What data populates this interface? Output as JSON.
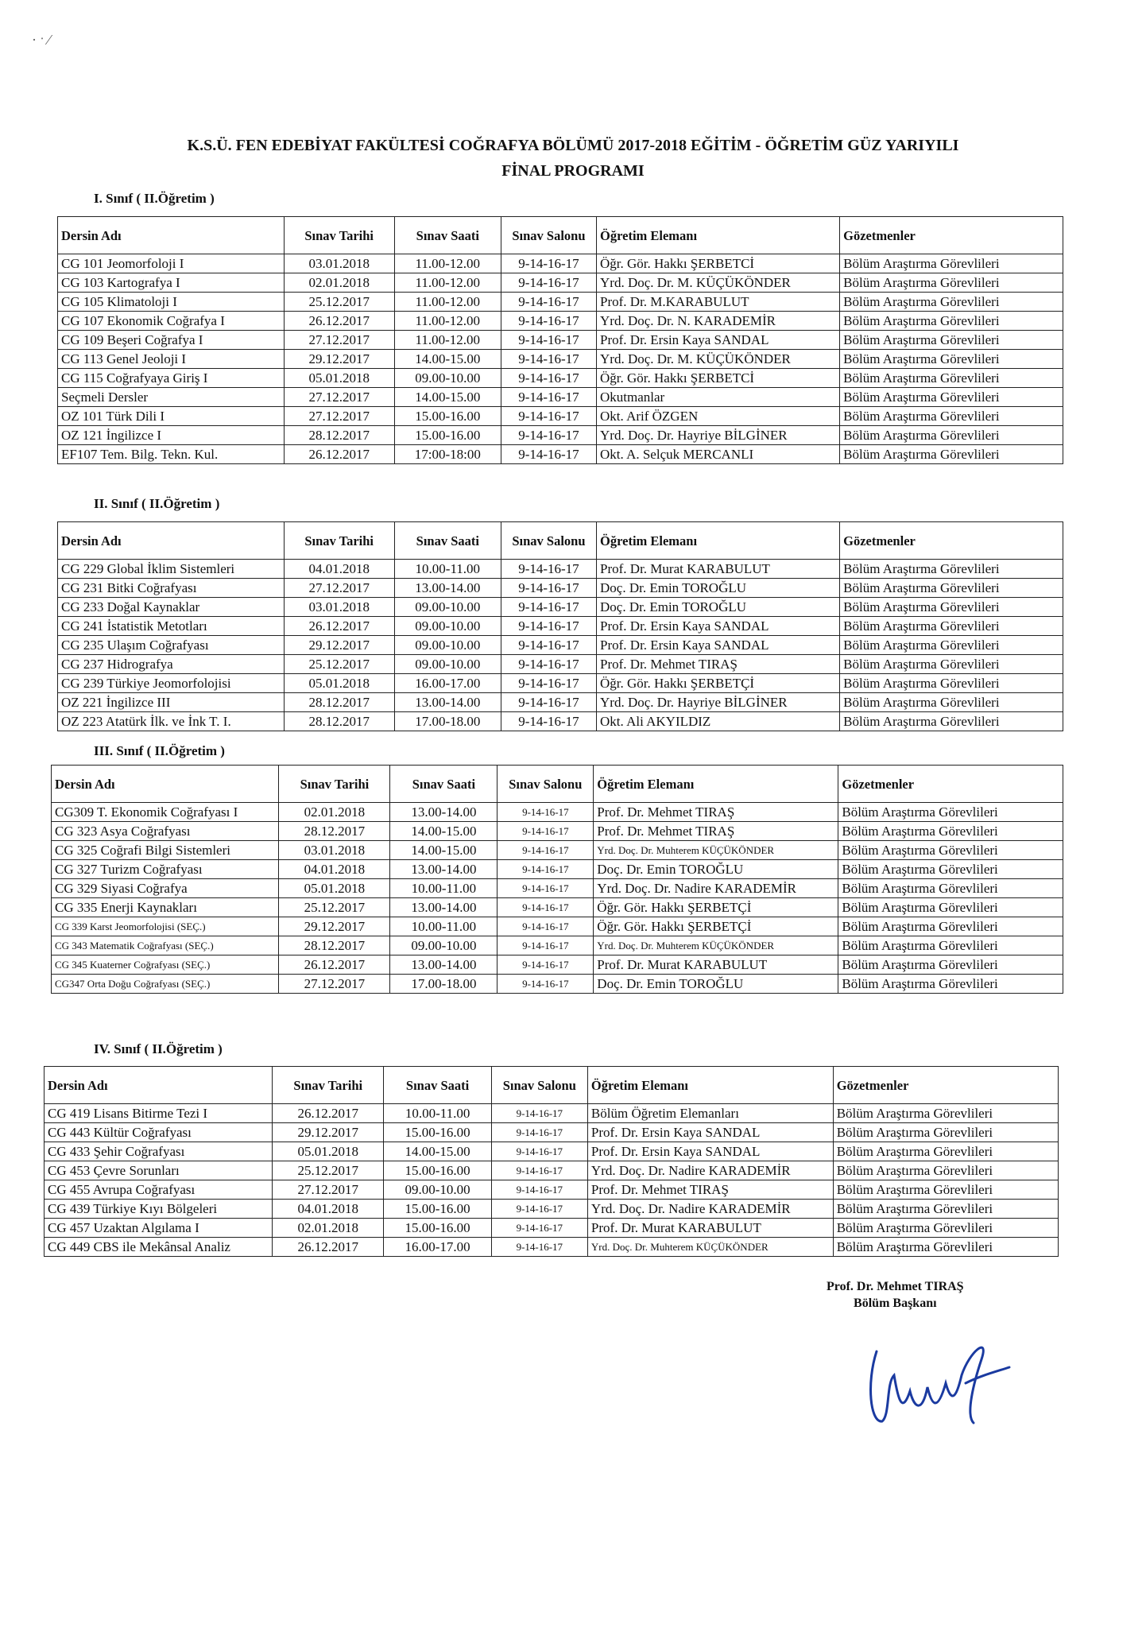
{
  "title_line1": "K.S.Ü. FEN EDEBİYAT FAKÜLTESİ COĞRAFYA BÖLÜMÜ 2017-2018 EĞİTİM - ÖĞRETİM GÜZ YARIYILI",
  "title_line2": "FİNAL PROGRAMI",
  "headers": [
    "Dersin Adı",
    "Sınav Tarihi",
    "Sınav Saati",
    "Sınav Salonu",
    "Öğretim Elemanı",
    "Gözetmenler"
  ],
  "sections": [
    {
      "label": "I. Sınıf ( II.Öğretim )",
      "rows": [
        [
          "CG 101 Jeomorfoloji I",
          "03.01.2018",
          "11.00-12.00",
          "9-14-16-17",
          "Öğr. Gör. Hakkı ŞERBETCİ",
          "Bölüm Araştırma Görevlileri"
        ],
        [
          "CG 103 Kartografya I",
          "02.01.2018",
          "11.00-12.00",
          "9-14-16-17",
          "Yrd. Doç. Dr. M. KÜÇÜKÖNDER",
          "Bölüm Araştırma Görevlileri"
        ],
        [
          "CG 105 Klimatoloji I",
          "25.12.2017",
          "11.00-12.00",
          "9-14-16-17",
          "Prof. Dr. M.KARABULUT",
          "Bölüm Araştırma Görevlileri"
        ],
        [
          "CG 107 Ekonomik Coğrafya I",
          "26.12.2017",
          "11.00-12.00",
          "9-14-16-17",
          "Yrd. Doç. Dr. N. KARADEMİR",
          "Bölüm Araştırma Görevlileri"
        ],
        [
          "CG 109 Beşeri Coğrafya I",
          "27.12.2017",
          "11.00-12.00",
          "9-14-16-17",
          "Prof. Dr. Ersin Kaya SANDAL",
          "Bölüm Araştırma Görevlileri"
        ],
        [
          "CG 113 Genel Jeoloji I",
          "29.12.2017",
          "14.00-15.00",
          "9-14-16-17",
          "Yrd. Doç. Dr. M. KÜÇÜKÖNDER",
          "Bölüm Araştırma Görevlileri"
        ],
        [
          "CG 115 Coğrafyaya Giriş I",
          "05.01.2018",
          "09.00-10.00",
          "9-14-16-17",
          "Öğr. Gör. Hakkı ŞERBETCİ",
          "Bölüm Araştırma Görevlileri"
        ],
        [
          "Seçmeli Dersler",
          "27.12.2017",
          "14.00-15.00",
          "9-14-16-17",
          "Okutmanlar",
          "Bölüm Araştırma Görevlileri"
        ],
        [
          "OZ 101 Türk Dili I",
          "27.12.2017",
          "15.00-16.00",
          "9-14-16-17",
          "Okt.  Arif ÖZGEN",
          "Bölüm Araştırma Görevlileri"
        ],
        [
          "OZ 121 İngilizce I",
          "28.12.2017",
          "15.00-16.00",
          "9-14-16-17",
          "Yrd. Doç. Dr. Hayriye BİLGİNER",
          "Bölüm Araştırma Görevlileri"
        ],
        [
          "EF107 Tem. Bilg. Tekn. Kul.",
          "26.12.2017",
          "17:00-18:00",
          "9-14-16-17",
          "Okt. A. Selçuk MERCANLI",
          "Bölüm Araştırma Görevlileri"
        ]
      ]
    },
    {
      "label": "II. Sınıf ( II.Öğretim )",
      "rows": [
        [
          "CG 229 Global İklim Sistemleri",
          "04.01.2018",
          "10.00-11.00",
          "9-14-16-17",
          "Prof. Dr. Murat KARABULUT",
          "Bölüm Araştırma Görevlileri"
        ],
        [
          "CG 231 Bitki Coğrafyası",
          "27.12.2017",
          "13.00-14.00",
          "9-14-16-17",
          "Doç. Dr. Emin TOROĞLU",
          "Bölüm Araştırma Görevlileri"
        ],
        [
          "CG 233 Doğal Kaynaklar",
          "03.01.2018",
          "09.00-10.00",
          "9-14-16-17",
          "Doç. Dr. Emin TOROĞLU",
          "Bölüm Araştırma Görevlileri"
        ],
        [
          "CG 241 İstatistik Metotları",
          "26.12.2017",
          "09.00-10.00",
          "9-14-16-17",
          "Prof. Dr. Ersin Kaya SANDAL",
          "Bölüm Araştırma Görevlileri"
        ],
        [
          "CG 235 Ulaşım Coğrafyası",
          "29.12.2017",
          "09.00-10.00",
          "9-14-16-17",
          "Prof. Dr. Ersin Kaya SANDAL",
          "Bölüm Araştırma Görevlileri"
        ],
        [
          "CG 237 Hidrografya",
          "25.12.2017",
          "09.00-10.00",
          "9-14-16-17",
          "Prof. Dr. Mehmet TIRAŞ",
          "Bölüm Araştırma Görevlileri"
        ],
        [
          "CG 239 Türkiye Jeomorfolojisi",
          "05.01.2018",
          "16.00-17.00",
          "9-14-16-17",
          "Öğr. Gör. Hakkı ŞERBETÇİ",
          "Bölüm Araştırma Görevlileri"
        ],
        [
          "OZ 221 İngilizce III",
          "28.12.2017",
          "13.00-14.00",
          "9-14-16-17",
          "Yrd. Doç. Dr. Hayriye BİLGİNER",
          "Bölüm Araştırma Görevlileri"
        ],
        [
          "OZ 223 Atatürk İlk. ve İnk T. I.",
          "28.12.2017",
          "17.00-18.00",
          "9-14-16-17",
          "Okt. Ali AKYILDIZ",
          "Bölüm Araştırma Görevlileri"
        ]
      ]
    },
    {
      "label": "III. Sınıf ( II.Öğretim )",
      "rows": [
        [
          "CG309 T. Ekonomik Coğrafyası I",
          "02.01.2018",
          "13.00-14.00",
          "9-14-16-17",
          "Prof. Dr. Mehmet TIRAŞ",
          "Bölüm Araştırma Görevlileri"
        ],
        [
          "CG 323 Asya Coğrafyası",
          "28.12.2017",
          "14.00-15.00",
          "9-14-16-17",
          "Prof. Dr. Mehmet TIRAŞ",
          "Bölüm Araştırma Görevlileri"
        ],
        [
          "CG 325 Coğrafi Bilgi Sistemleri",
          "03.01.2018",
          "14.00-15.00",
          "9-14-16-17",
          "Yrd. Doç. Dr. Muhterem KÜÇÜKÖNDER",
          "Bölüm Araştırma Görevlileri"
        ],
        [
          "CG 327 Turizm Coğrafyası",
          "04.01.2018",
          "13.00-14.00",
          "9-14-16-17",
          "Doç. Dr. Emin TOROĞLU",
          "Bölüm Araştırma Görevlileri"
        ],
        [
          "CG 329 Siyasi Coğrafya",
          "05.01.2018",
          "10.00-11.00",
          "9-14-16-17",
          "Yrd. Doç. Dr. Nadire KARADEMİR",
          "Bölüm Araştırma Görevlileri"
        ],
        [
          "CG 335 Enerji Kaynakları",
          "25.12.2017",
          "13.00-14.00",
          "9-14-16-17",
          "Öğr. Gör. Hakkı ŞERBETÇİ",
          "Bölüm Araştırma Görevlileri"
        ],
        [
          "CG 339 Karst Jeomorfolojisi (SEÇ.)",
          "29.12.2017",
          "10.00-11.00",
          "9-14-16-17",
          "Öğr. Gör. Hakkı ŞERBETÇİ",
          "Bölüm Araştırma Görevlileri"
        ],
        [
          "CG 343 Matematik Coğrafyası (SEÇ.)",
          "28.12.2017",
          "09.00-10.00",
          "9-14-16-17",
          "Yrd. Doç. Dr. Muhterem KÜÇÜKÖNDER",
          "Bölüm Araştırma Görevlileri"
        ],
        [
          "CG 345 Kuaterner Coğrafyası (SEÇ.)",
          "26.12.2017",
          "13.00-14.00",
          "9-14-16-17",
          "Prof. Dr. Murat KARABULUT",
          "Bölüm Araştırma Görevlileri"
        ],
        [
          "CG347 Orta Doğu Coğrafyası (SEÇ.)",
          "27.12.2017",
          "17.00-18.00",
          "9-14-16-17",
          "Doç. Dr. Emin TOROĞLU",
          "Bölüm Araştırma Görevlileri"
        ]
      ]
    },
    {
      "label": "IV. Sınıf ( II.Öğretim )",
      "rows": [
        [
          "CG 419 Lisans Bitirme Tezi I",
          "26.12.2017",
          "10.00-11.00",
          "9-14-16-17",
          "Bölüm Öğretim Elemanları",
          "Bölüm Araştırma Görevlileri"
        ],
        [
          "CG 443 Kültür Coğrafyası",
          "29.12.2017",
          "15.00-16.00",
          "9-14-16-17",
          "Prof. Dr. Ersin Kaya SANDAL",
          "Bölüm Araştırma Görevlileri"
        ],
        [
          "CG 433 Şehir Coğrafyası",
          "05.01.2018",
          "14.00-15.00",
          "9-14-16-17",
          "Prof. Dr. Ersin Kaya SANDAL",
          "Bölüm Araştırma Görevlileri"
        ],
        [
          "CG 453 Çevre Sorunları",
          "25.12.2017",
          "15.00-16.00",
          "9-14-16-17",
          "Yrd. Doç. Dr. Nadire KARADEMİR",
          "Bölüm Araştırma Görevlileri"
        ],
        [
          "CG 455 Avrupa Coğrafyası",
          "27.12.2017",
          "09.00-10.00",
          "9-14-16-17",
          "Prof. Dr. Mehmet TIRAŞ",
          "Bölüm Araştırma Görevlileri"
        ],
        [
          "CG 439 Türkiye Kıyı Bölgeleri",
          "04.01.2018",
          "15.00-16.00",
          "9-14-16-17",
          "Yrd. Doç. Dr. Nadire KARADEMİR",
          "Bölüm Araştırma Görevlileri"
        ],
        [
          "CG 457 Uzaktan Algılama I",
          "02.01.2018",
          "15.00-16.00",
          "9-14-16-17",
          "Prof. Dr. Murat KARABULUT",
          "Bölüm Araştırma Görevlileri"
        ],
        [
          "CG 449 CBS ile Mekânsal Analiz",
          "26.12.2017",
          "16.00-17.00",
          "9-14-16-17",
          "Yrd. Doç. Dr. Muhterem KÜÇÜKÖNDER",
          "Bölüm Araştırma Görevlileri"
        ]
      ]
    }
  ],
  "signatory": {
    "name": "Prof. Dr. Mehmet TIRAŞ",
    "role": "Bölüm Başkanı"
  },
  "signature_color": "#1a3aa0"
}
